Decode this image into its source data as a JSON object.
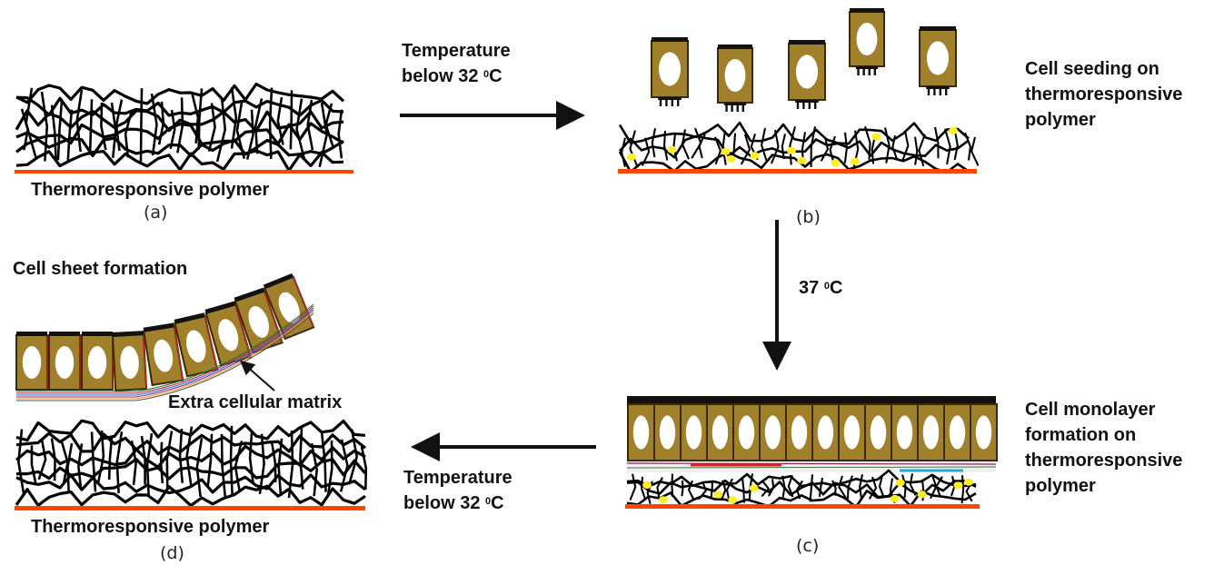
{
  "panels": {
    "a": {
      "caption": "Thermoresponsive polymer",
      "panel_label": "(a)"
    },
    "b": {
      "caption": "Cell seeding on thermoresponsive polymer",
      "caption_lines": [
        "Cell seeding on",
        "thermoresponsive",
        "polymer"
      ],
      "panel_label": "(b)"
    },
    "c": {
      "caption": "Cell monolayer formation on thermoresponsive polymer",
      "caption_lines": [
        "Cell monolayer",
        "formation on",
        "thermoresponsive",
        "polymer"
      ],
      "panel_label": "(c)"
    },
    "d": {
      "caption": "Thermoresponsive polymer",
      "panel_label": "(d)",
      "sheet_title": "Cell sheet formation",
      "ecm_label": "Extra cellular matrix"
    }
  },
  "arrows": {
    "a_to_b": {
      "line1": "Temperature",
      "line2_prefix": "below 32 ",
      "sup": "0",
      "unit": "C"
    },
    "b_to_c": {
      "prefix": "37 ",
      "sup": "0",
      "unit": "C"
    },
    "c_to_d": {
      "line1": "Temperature",
      "line2_prefix": "below 32 ",
      "sup": "0",
      "unit": "C"
    }
  },
  "colors": {
    "polymer": "#000000",
    "substrate": "#ff4500",
    "cell_body": "#a0802a",
    "cell_edge": "#3a2a08",
    "nucleus": "#ffffff",
    "adhesion": "#ffef22"
  },
  "icons": [
    "polymer-mesh",
    "cell",
    "right-arrow",
    "down-arrow",
    "left-arrow"
  ]
}
